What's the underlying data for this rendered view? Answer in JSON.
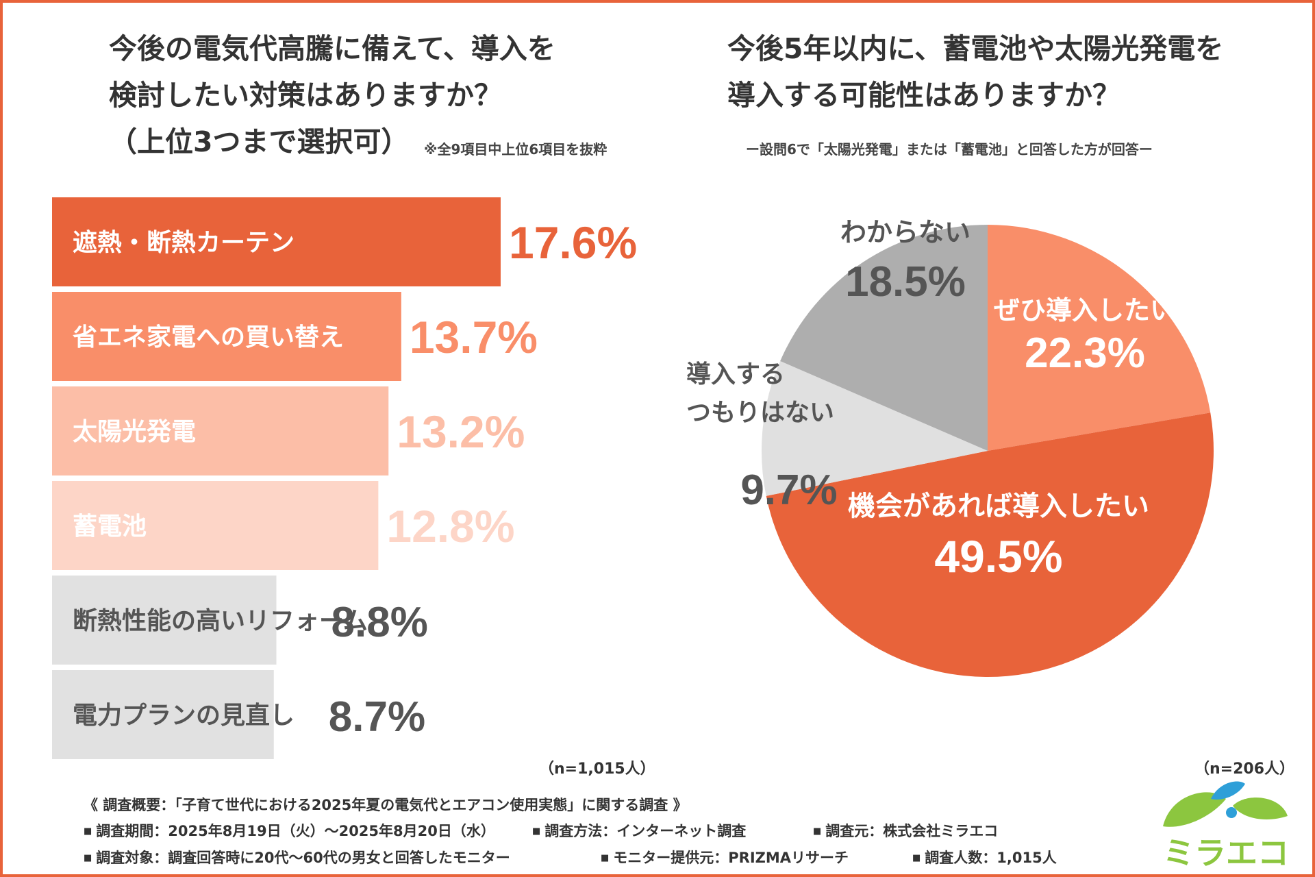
{
  "left_title": {
    "lines": [
      "今後の電気代高騰に備えて、導入を",
      "検討したい対策はありますか？",
      "（上位3つまで選択可）"
    ],
    "note": "※全9項目中上位6項目を抜粋",
    "n_label": "（n=1,015人）"
  },
  "right_title": {
    "lines": [
      "今後5年以内に、蓄電池や太陽光発電を",
      "導入する可能性はありますか？"
    ],
    "note": "ー設問6で「太陽光発電」または「蓄電池」と回答した方が回答ー",
    "n_label": "（n=206人）"
  },
  "chart_data": [
    {
      "type": "bar",
      "orientation": "horizontal",
      "title": "今後の電気代高騰に備えて、導入を検討したい対策はありますか？（上位3つまで選択可）",
      "categories": [
        "遮熱・断熱カーテン",
        "省エネ家電への買い替え",
        "太陽光発電",
        "蓄電池",
        "断熱性能の高いリフォーム",
        "電力プランの見直し"
      ],
      "values": [
        17.6,
        13.7,
        13.2,
        12.8,
        8.8,
        8.7
      ],
      "value_labels": [
        "17.6%",
        "13.7%",
        "13.2%",
        "12.8%",
        "8.8%",
        "8.7%"
      ],
      "unit": "%",
      "xlim": [
        0,
        18
      ],
      "colors": [
        "#E8633A",
        "#F98E69",
        "#FCBEA7",
        "#FDD5C7",
        "#E1E1E1",
        "#E1E1E1"
      ],
      "label_colors": [
        "#E8633A",
        "#F98E69",
        "#FCBEA7",
        "#FDD5C7",
        "#555555",
        "#555555"
      ],
      "grid": false
    },
    {
      "type": "pie",
      "title": "今後5年以内に、蓄電池や太陽光発電を導入する可能性はありますか？",
      "categories": [
        "ぜひ導入したい",
        "機会があれば導入したい",
        "導入するつもりはない",
        "わからない"
      ],
      "values": [
        22.3,
        49.5,
        9.7,
        18.5
      ],
      "value_labels": [
        "22.3%",
        "49.5%",
        "9.7%",
        "18.5%"
      ],
      "colors": [
        "#F98E69",
        "#E8633A",
        "#E0E0E0",
        "#AEAEAE"
      ],
      "label_colors": [
        "#ffffff",
        "#ffffff",
        "#555555",
        "#555555"
      ],
      "start": "12 o'clock",
      "direction": "clockwise"
    }
  ],
  "survey": {
    "heading": "《 調査概要：「子育て世代における2025年夏の電気代とエアコン使用実態」に関する調査 》",
    "items": [
      "調査期間：2025年8月19日（火）～2025年8月20日（水）",
      "調査方法：インターネット調査",
      "調査元：株式会社ミラエコ",
      "調査対象：調査回答時に20代～60代の男女と回答したモニター",
      "モニター提供元：PRIZMAリサーチ",
      "調査人数：1,015人"
    ]
  },
  "logo": {
    "text": "ミラエコ",
    "colors": {
      "green": "#8CC63F",
      "blue": "#2E9FD8"
    }
  }
}
